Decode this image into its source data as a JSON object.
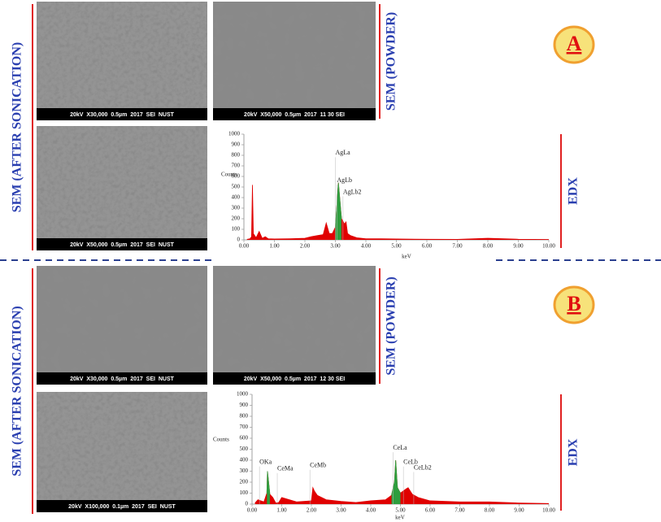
{
  "panels": [
    {
      "label": "A",
      "sem_left_label": "SEM (AFTER SONICATION)",
      "sem_right_label": "SEM (POWDER)",
      "edx_label": "EDX",
      "images": [
        {
          "caption": "20kV  X30,000  0.5µm  2017  SEI  NUST"
        },
        {
          "caption": "20kV  X50,000  0.5µm  2017  11 30 SEI"
        },
        {
          "caption": "20kV  X50,000  0.5µm  2017  SEI  NUST"
        }
      ]
    },
    {
      "label": "B",
      "sem_left_label": "SEM (AFTER SONICATION)",
      "sem_right_label": "SEM (POWDER)",
      "edx_label": "EDX",
      "images": [
        {
          "caption": "20kV  X30,000  0.5µm  2017  SEI  NUST"
        },
        {
          "caption": "20kV  X50,000  0.5µm  2017  12 30 SEI"
        },
        {
          "caption": "20kV  X100,000  0.1µm  2017  SEI  NUST"
        }
      ]
    }
  ],
  "chart_data": [
    {
      "type": "area",
      "ylabel": "Counts",
      "xlabel": "keV",
      "x": [
        0.1,
        0.2,
        0.25,
        0.28,
        0.31,
        0.4,
        0.5,
        0.6,
        0.7,
        0.8,
        1.0,
        1.5,
        2.0,
        2.2,
        2.4,
        2.6,
        2.7,
        2.8,
        2.9,
        3.0,
        3.1,
        3.2,
        3.3,
        3.35,
        3.4,
        3.5,
        3.7,
        4.0,
        4.5,
        5.0,
        6.0,
        7.0,
        8.0,
        9.0,
        10.0
      ],
      "series": [
        {
          "color": "#e00000",
          "values": [
            5,
            10,
            30,
            520,
            60,
            20,
            80,
            15,
            30,
            10,
            8,
            10,
            15,
            30,
            40,
            50,
            160,
            60,
            60,
            120,
            540,
            200,
            150,
            170,
            60,
            40,
            20,
            10,
            10,
            8,
            6,
            5,
            15,
            6,
            4
          ]
        },
        {
          "color": "#2e9e3e",
          "values": [
            null,
            null,
            null,
            null,
            null,
            null,
            null,
            null,
            null,
            null,
            null,
            null,
            null,
            null,
            null,
            null,
            null,
            null,
            null,
            120,
            540,
            200,
            null,
            null,
            null,
            null,
            null,
            null,
            null,
            null,
            null,
            null,
            null,
            null,
            null
          ]
        }
      ],
      "annotations": [
        "AgLa",
        "AgLb",
        "AgLb2"
      ],
      "xlim": [
        0,
        10
      ],
      "ylim": [
        0,
        1000
      ],
      "xticks": [
        {
          "value": 0,
          "label": "0.00"
        },
        {
          "value": 1,
          "label": "1.00"
        },
        {
          "value": 2,
          "label": "2.00"
        },
        {
          "value": 3,
          "label": "3.00"
        },
        {
          "value": 4,
          "label": "4.00"
        },
        {
          "value": 5,
          "label": "5.00"
        },
        {
          "value": 6,
          "label": "6.00"
        },
        {
          "value": 7,
          "label": "7.00"
        },
        {
          "value": 8,
          "label": "8.00"
        },
        {
          "value": 9,
          "label": "9.00"
        },
        {
          "value": 10,
          "label": "10.00"
        }
      ],
      "yticks": [
        0,
        100,
        200,
        300,
        400,
        500,
        600,
        700,
        800,
        900,
        1000
      ]
    },
    {
      "type": "area",
      "ylabel": "Counts",
      "xlabel": "keV",
      "x": [
        0.1,
        0.2,
        0.3,
        0.4,
        0.5,
        0.52,
        0.6,
        0.7,
        0.8,
        0.9,
        1.0,
        1.5,
        2.0,
        2.05,
        2.1,
        2.2,
        2.5,
        3.0,
        3.5,
        4.0,
        4.5,
        4.7,
        4.8,
        4.84,
        4.9,
        5.0,
        5.2,
        5.26,
        5.4,
        5.6,
        6.0,
        7.0,
        8.0,
        9.0,
        10.0
      ],
      "series": [
        {
          "color": "#e00000",
          "values": [
            10,
            40,
            30,
            20,
            100,
            300,
            90,
            60,
            10,
            15,
            60,
            20,
            30,
            150,
            120,
            80,
            40,
            25,
            15,
            30,
            40,
            80,
            200,
            400,
            150,
            100,
            140,
            150,
            90,
            60,
            30,
            20,
            20,
            10,
            5
          ]
        },
        {
          "color": "#2e9e3e",
          "values": [
            null,
            null,
            null,
            null,
            100,
            300,
            90,
            null,
            null,
            null,
            null,
            null,
            null,
            null,
            null,
            null,
            null,
            null,
            null,
            null,
            null,
            80,
            200,
            400,
            150,
            100,
            null,
            null,
            null,
            null,
            null,
            null,
            null,
            null,
            null
          ]
        }
      ],
      "annotations": [
        "OKa",
        "CeMa",
        "CeMb",
        "CeLa",
        "CeLb",
        "CeLb2"
      ],
      "xlim": [
        0,
        10
      ],
      "ylim": [
        0,
        1000
      ],
      "xticks": [
        {
          "value": 0,
          "label": "0.00"
        },
        {
          "value": 1,
          "label": "1.00"
        },
        {
          "value": 2,
          "label": "2.00"
        },
        {
          "value": 3,
          "label": "3.00"
        },
        {
          "value": 4,
          "label": "4.00"
        },
        {
          "value": 5,
          "label": "5.00"
        },
        {
          "value": 6,
          "label": "6.00"
        },
        {
          "value": 7,
          "label": "7.00"
        },
        {
          "value": 8,
          "label": "8.00"
        },
        {
          "value": 9,
          "label": "9.00"
        },
        {
          "value": 10,
          "label": "10.00"
        }
      ],
      "yticks": [
        0,
        100,
        200,
        300,
        400,
        500,
        600,
        700,
        800,
        900,
        1000
      ]
    }
  ]
}
